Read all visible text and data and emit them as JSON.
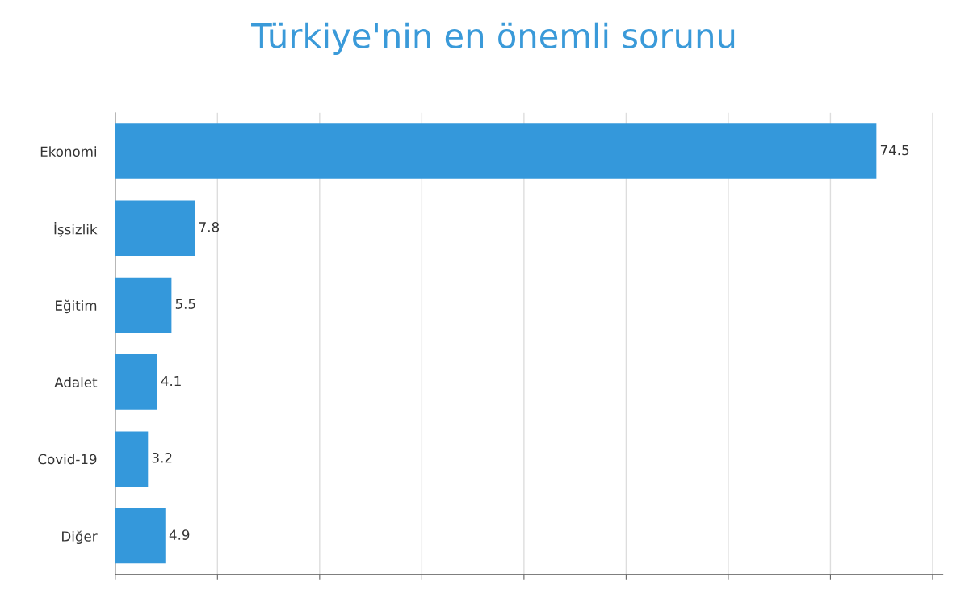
{
  "chart_data": {
    "type": "bar",
    "orientation": "horizontal",
    "title": "Türkiye'nin en önemli sorunu",
    "categories": [
      "Ekonomi",
      "İşsizlik",
      "Eğitim",
      "Adalet",
      "Covid-19",
      "Diğer"
    ],
    "values": [
      74.5,
      7.8,
      5.5,
      4.1,
      3.2,
      4.9
    ],
    "color": "#3498db",
    "xlim": [
      0,
      81
    ],
    "xticks": [
      {
        "value": 0,
        "label": null
      },
      {
        "value": 10,
        "label": null
      },
      {
        "value": 20,
        "label": null
      },
      {
        "value": 30,
        "label": null
      },
      {
        "value": 40,
        "label": null
      },
      {
        "value": 50,
        "label": null
      },
      {
        "value": 60,
        "label": null
      },
      {
        "value": 70,
        "label": null
      },
      {
        "value": 80,
        "label": null
      }
    ],
    "tick_labels": "y",
    "grid": "x",
    "data_labels": true,
    "legend": false
  }
}
